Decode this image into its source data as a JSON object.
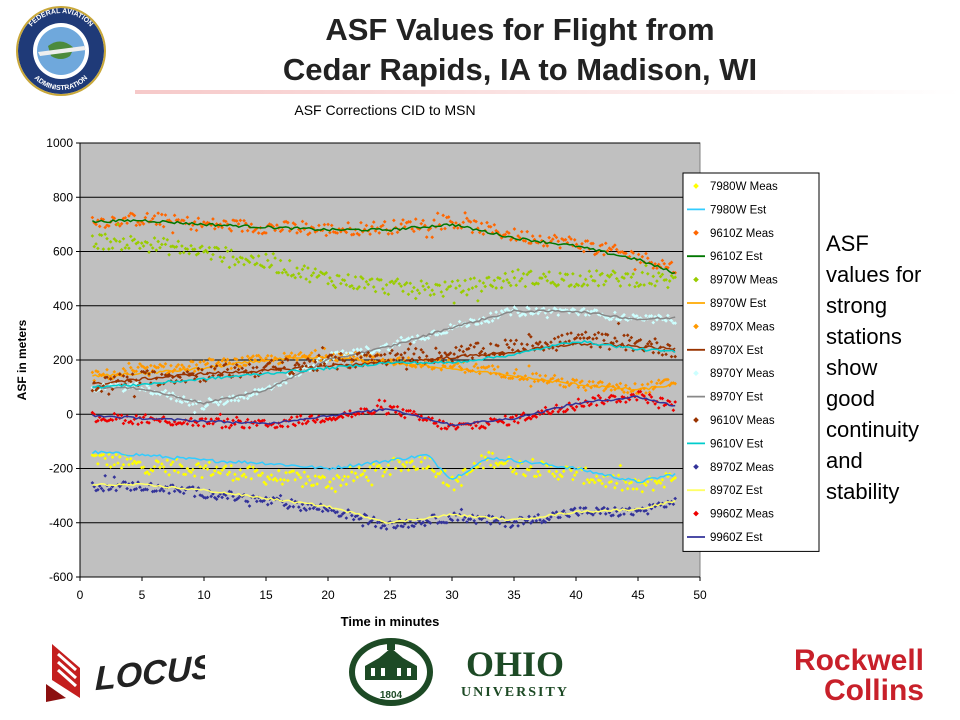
{
  "slide": {
    "title_line1": "ASF Values for Flight from",
    "title_line2": "Cedar Rapids, IA to Madison, WI",
    "note_lines": [
      "ASF",
      "values for",
      "strong",
      "stations",
      "show",
      "good",
      "continuity",
      "and",
      "stability"
    ]
  },
  "logos": {
    "faa_ring_top": "FEDERAL AVIATION",
    "faa_ring_bottom": "ADMINISTRATION",
    "locus": "LOCUS",
    "ohio_line1": "OHIO",
    "ohio_line2": "UNIVERSITY",
    "ohio_year": "1804",
    "rockwell_line1": "Rockwell",
    "rockwell_line2": "Collins"
  },
  "chart_data": {
    "type": "scatter",
    "title": "ASF Corrections CID to MSN",
    "xlabel": "Time in minutes",
    "ylabel": "ASF in meters",
    "xlim": [
      0,
      50
    ],
    "ylim": [
      -600,
      1000
    ],
    "xticks": [
      0,
      5,
      10,
      15,
      20,
      25,
      30,
      35,
      40,
      45,
      50
    ],
    "yticks": [
      -600,
      -400,
      -200,
      0,
      200,
      400,
      600,
      800,
      1000
    ],
    "grid": true,
    "legend_position": "right",
    "plot_background": "#c0c0c0",
    "series": [
      {
        "name": "7980W Meas",
        "kind": "meas",
        "color": "#ffff00",
        "noise": 30,
        "x": [
          1,
          5,
          10,
          15,
          20,
          25,
          28,
          30,
          33,
          35,
          40,
          45,
          48
        ],
        "y": [
          -160,
          -190,
          -200,
          -230,
          -250,
          -200,
          -170,
          -260,
          -160,
          -190,
          -220,
          -270,
          -230
        ]
      },
      {
        "name": "7980W Est",
        "kind": "est",
        "color": "#33ccff",
        "noise": 6,
        "x": [
          1,
          5,
          10,
          15,
          20,
          25,
          28,
          30,
          33,
          35,
          40,
          45,
          48
        ],
        "y": [
          -140,
          -150,
          -170,
          -180,
          -200,
          -170,
          -150,
          -240,
          -160,
          -170,
          -200,
          -250,
          -220
        ]
      },
      {
        "name": "9610Z Meas",
        "kind": "meas",
        "color": "#ff6600",
        "noise": 25,
        "x": [
          1,
          5,
          10,
          15,
          20,
          25,
          30,
          35,
          40,
          45,
          48
        ],
        "y": [
          710,
          720,
          700,
          690,
          680,
          690,
          710,
          660,
          630,
          580,
          540
        ]
      },
      {
        "name": "9610Z Est",
        "kind": "est",
        "color": "#007700",
        "noise": 5,
        "x": [
          1,
          5,
          10,
          15,
          20,
          25,
          30,
          35,
          40,
          45,
          48
        ],
        "y": [
          710,
          715,
          700,
          690,
          680,
          680,
          700,
          650,
          620,
          570,
          520
        ]
      },
      {
        "name": "8970W Meas",
        "kind": "meas",
        "color": "#99cc00",
        "noise": 30,
        "x": [
          1,
          5,
          10,
          15,
          20,
          25,
          30,
          35,
          40,
          45,
          48
        ],
        "y": [
          640,
          630,
          600,
          560,
          500,
          470,
          460,
          500,
          500,
          500,
          490
        ]
      },
      {
        "name": "8970W Est",
        "kind": "est",
        "color": "#ffaa00",
        "noise": 5,
        "x": [
          1,
          5,
          10,
          15,
          20,
          25,
          30,
          35,
          40,
          45,
          48
        ],
        "y": [
          140,
          150,
          170,
          200,
          210,
          190,
          170,
          140,
          110,
          90,
          110
        ]
      },
      {
        "name": "8970X Meas",
        "kind": "meas",
        "color": "#ff9900",
        "noise": 20,
        "x": [
          1,
          5,
          10,
          15,
          20,
          25,
          30,
          35,
          40,
          45,
          48
        ],
        "y": [
          140,
          160,
          180,
          200,
          220,
          200,
          180,
          150,
          110,
          90,
          120
        ]
      },
      {
        "name": "8970X Est",
        "kind": "est",
        "color": "#993300",
        "noise": 5,
        "x": [
          1,
          5,
          10,
          15,
          20,
          25,
          30,
          35,
          40,
          45,
          48
        ],
        "y": [
          110,
          130,
          150,
          160,
          180,
          190,
          210,
          230,
          260,
          250,
          240
        ]
      },
      {
        "name": "8970Y Meas",
        "kind": "meas",
        "color": "#ccffff",
        "noise": 15,
        "x": [
          1,
          5,
          10,
          15,
          20,
          25,
          30,
          35,
          40,
          45,
          48
        ],
        "y": [
          100,
          100,
          30,
          90,
          210,
          250,
          320,
          380,
          380,
          350,
          350
        ]
      },
      {
        "name": "8970Y Est",
        "kind": "est",
        "color": "#888888",
        "noise": 4,
        "x": [
          1,
          5,
          10,
          15,
          20,
          25,
          30,
          35,
          40,
          45,
          48
        ],
        "y": [
          100,
          95,
          40,
          90,
          200,
          250,
          320,
          380,
          380,
          350,
          355
        ]
      },
      {
        "name": "9610V Meas",
        "kind": "meas",
        "color": "#993300",
        "noise": 30,
        "x": [
          1,
          5,
          10,
          15,
          20,
          25,
          30,
          35,
          40,
          45,
          48
        ],
        "y": [
          110,
          130,
          150,
          170,
          190,
          210,
          220,
          250,
          280,
          260,
          240
        ]
      },
      {
        "name": "9610V Est",
        "kind": "est",
        "color": "#00cccc",
        "noise": 5,
        "x": [
          1,
          5,
          10,
          15,
          20,
          25,
          30,
          35,
          40,
          45,
          48
        ],
        "y": [
          100,
          110,
          130,
          150,
          170,
          190,
          190,
          220,
          270,
          240,
          230
        ]
      },
      {
        "name": "8970Z Meas",
        "kind": "meas",
        "color": "#333399",
        "noise": 18,
        "x": [
          1,
          5,
          10,
          15,
          20,
          25,
          30,
          35,
          40,
          45,
          48
        ],
        "y": [
          -265,
          -265,
          -290,
          -320,
          -350,
          -410,
          -380,
          -400,
          -360,
          -360,
          -320
        ]
      },
      {
        "name": "8970Z Est",
        "kind": "est",
        "color": "#ffff66",
        "noise": 4,
        "x": [
          1,
          5,
          10,
          15,
          20,
          25,
          30,
          35,
          40,
          45,
          48
        ],
        "y": [
          -260,
          -260,
          -280,
          -310,
          -340,
          -400,
          -370,
          -390,
          -360,
          -350,
          -320
        ]
      },
      {
        "name": "9960Z Meas",
        "kind": "meas",
        "color": "#ee0000",
        "noise": 18,
        "x": [
          1,
          5,
          10,
          15,
          20,
          25,
          30,
          35,
          40,
          45,
          48
        ],
        "y": [
          -10,
          -20,
          -30,
          -40,
          -10,
          20,
          -50,
          -20,
          40,
          70,
          30
        ]
      },
      {
        "name": "9960Z Est",
        "kind": "est",
        "color": "#333399",
        "noise": 4,
        "x": [
          1,
          5,
          10,
          15,
          20,
          25,
          30,
          35,
          40,
          45,
          48
        ],
        "y": [
          -5,
          -15,
          -25,
          -35,
          -5,
          20,
          -40,
          -15,
          40,
          65,
          30
        ]
      }
    ]
  }
}
